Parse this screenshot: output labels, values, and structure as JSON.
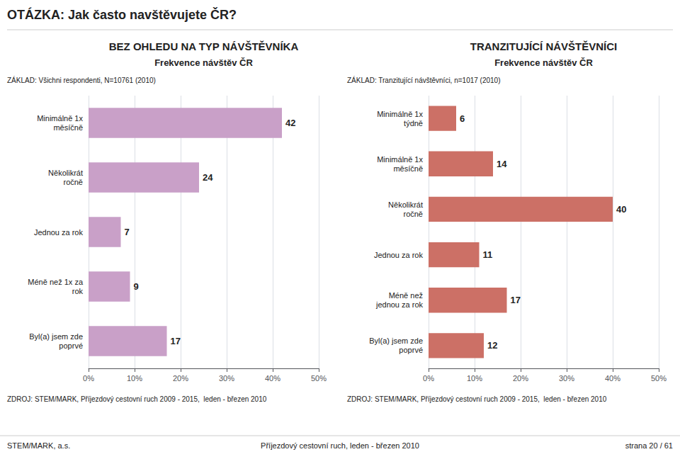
{
  "title": "OTÁZKA: Jak často navštěvujete ČR?",
  "annotations": [
    "STEM/MARK, a.s.",
    "Příjezdový cestovní ruch, leden - březen 2010",
    "strana 20 / 61"
  ],
  "chart_data": [
    {
      "type": "bar",
      "orientation": "horizontal",
      "title": "BEZ OHLEDU NA TYP NÁVŠTĚVNÍKA",
      "subtitle": "Frekvence návštěv ČR",
      "annotations": [
        "ZÁKLAD: Všichni respondenti, N=10761 (2010)",
        "ZDROJ: STEM/MARK, Příjezdový cestovní ruch 2009 - 2015,  leden - březen 2010"
      ],
      "categories": [
        "Minimálně 1x\nměsíčně",
        "Několikrát\nročně",
        "Jednou za rok",
        "Méně než 1x za\nrok",
        "Byl(a) jsem zde\npoprvé"
      ],
      "values": [
        42,
        24,
        7,
        9,
        17
      ],
      "color": "#c9a0c8",
      "xlim": [
        0,
        50
      ],
      "xticks": [
        {
          "value": 0,
          "label": "0%"
        },
        {
          "value": 10,
          "label": "10%"
        },
        {
          "value": 20,
          "label": "20%"
        },
        {
          "value": 30,
          "label": "30%"
        },
        {
          "value": 40,
          "label": "40%"
        },
        {
          "value": 50,
          "label": "50%"
        }
      ],
      "grid": true,
      "data_labels": true
    },
    {
      "type": "bar",
      "orientation": "horizontal",
      "title": "TRANZITUJÍCÍ NÁVŠTĚVNÍCI",
      "subtitle": "Frekvence návštěv ČR",
      "annotations": [
        "ZÁKLAD: Tranzitující návštěvníci, n=1017 (2010)",
        "ZDROJ: STEM/MARK, Příjezdový cestovní ruch 2009 - 2015,  leden - březen 2010"
      ],
      "categories": [
        "Minimálně 1x\ntýdně",
        "Minimálně 1x\nměsíčně",
        "Několikrát\nročně",
        "Jednou za rok",
        "Méně než\njednou za rok",
        "Byl(a) jsem zde\npoprvé"
      ],
      "values": [
        6,
        14,
        40,
        11,
        17,
        12
      ],
      "color": "#cc7066",
      "xlim": [
        0,
        50
      ],
      "xticks": [
        {
          "value": 0,
          "label": "0%"
        },
        {
          "value": 10,
          "label": "10%"
        },
        {
          "value": 20,
          "label": "20%"
        },
        {
          "value": 30,
          "label": "30%"
        },
        {
          "value": 40,
          "label": "40%"
        },
        {
          "value": 50,
          "label": "50%"
        }
      ],
      "grid": true,
      "data_labels": true
    }
  ]
}
